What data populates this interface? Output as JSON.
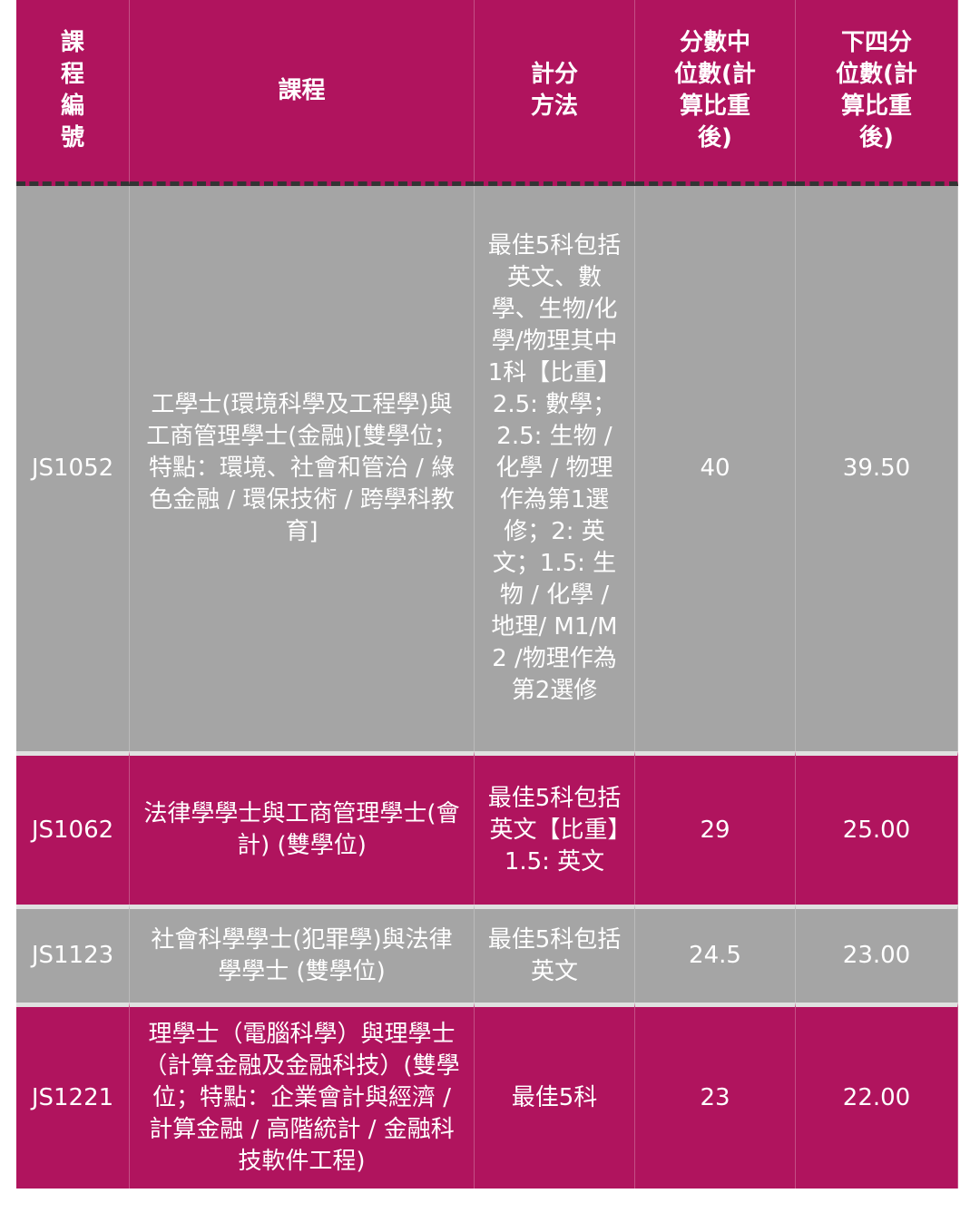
{
  "colors": {
    "header": "#b0145e",
    "row_magenta": "#b0145e",
    "row_grey": "#a5a5a5"
  },
  "headers": [
    "課程編號",
    "課程",
    "計分方法",
    "分數中位數(計算比重後)",
    "下四分位數(計算比重後)"
  ],
  "rows": [
    {
      "code": "JS1052",
      "program": "工學士(環境科學及工程學)與工商管理學士(金融)[雙學位；特點：環境、社會和管治 / 綠色金融 / 環保技術 / 跨學科教育]",
      "method": "最佳5科包括英文、數學、生物/化學/物理其中1科【比重】2.5: 數學；2.5: 生物 / 化學 / 物理作為第1選修；2: 英文；1.5: 生物 / 化學 / 地理/ M1/M2 /物理作為第2選修",
      "median": "40",
      "lower_quartile": "39.50"
    },
    {
      "code": "JS1062",
      "program": "法律學學士與工商管理學士(會計) (雙學位)",
      "method": "最佳5科包括英文【比重】1.5: 英文",
      "median": "29",
      "lower_quartile": "25.00"
    },
    {
      "code": "JS1123",
      "program": "社會科學學士(犯罪學)與法律學學士 (雙學位)",
      "method": "最佳5科包括英文",
      "median": "24.5",
      "lower_quartile": "23.00"
    },
    {
      "code": "JS1221",
      "program": "理學士（電腦科學）與理學士（計算金融及金融科技）(雙學位；特點：企業會計與經濟 / 計算金融 / 高階統計 / 金融科技軟件工程)",
      "method": "最佳5科",
      "median": "23",
      "lower_quartile": "22.00"
    }
  ]
}
